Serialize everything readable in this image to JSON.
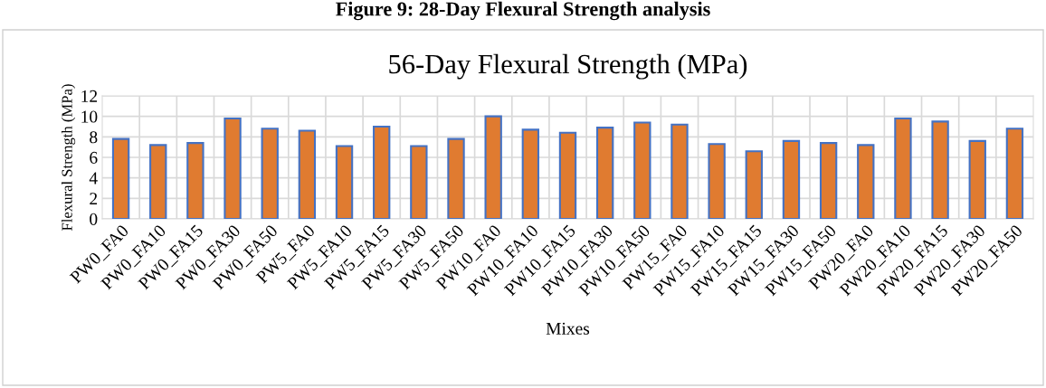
{
  "chart_data": {
    "type": "bar",
    "title": "56-Day Flexural Strength (MPa)",
    "xlabel": "Mixes",
    "ylabel": "Flexural Strength (MPa)",
    "annotations": [
      "Figure 9: 28-Day Flexural Strength analysis"
    ],
    "categories": [
      "PW0_FA0",
      "PW0_FA10",
      "PW0_FA15",
      "PW0_FA30",
      "PW0_FA50",
      "PW5_FA0",
      "PW5_FA10",
      "PW5_FA15",
      "PW5_FA30",
      "PW5_FA50",
      "PW10_FA0",
      "PW10_FA10",
      "PW10_FA15",
      "PW10_FA30",
      "PW10_FA50",
      "PW15_FA0",
      "PW15_FA10",
      "PW15_FA15",
      "PW15_FA30",
      "PW15_FA50",
      "PW20_FA0",
      "PW20_FA10",
      "PW20_FA15",
      "PW20_FA30",
      "PW20_FA50"
    ],
    "values": [
      7.8,
      7.2,
      7.4,
      9.8,
      8.8,
      8.6,
      7.1,
      9.0,
      7.1,
      7.8,
      10.0,
      8.7,
      8.4,
      8.9,
      9.4,
      9.2,
      7.3,
      6.6,
      7.6,
      7.4,
      7.2,
      9.8,
      9.5,
      7.6,
      8.8
    ],
    "color": "#e07b30",
    "ylim": [
      0,
      12
    ],
    "yticks": [
      0,
      2,
      4,
      6,
      8,
      10,
      12
    ],
    "grid": true
  }
}
